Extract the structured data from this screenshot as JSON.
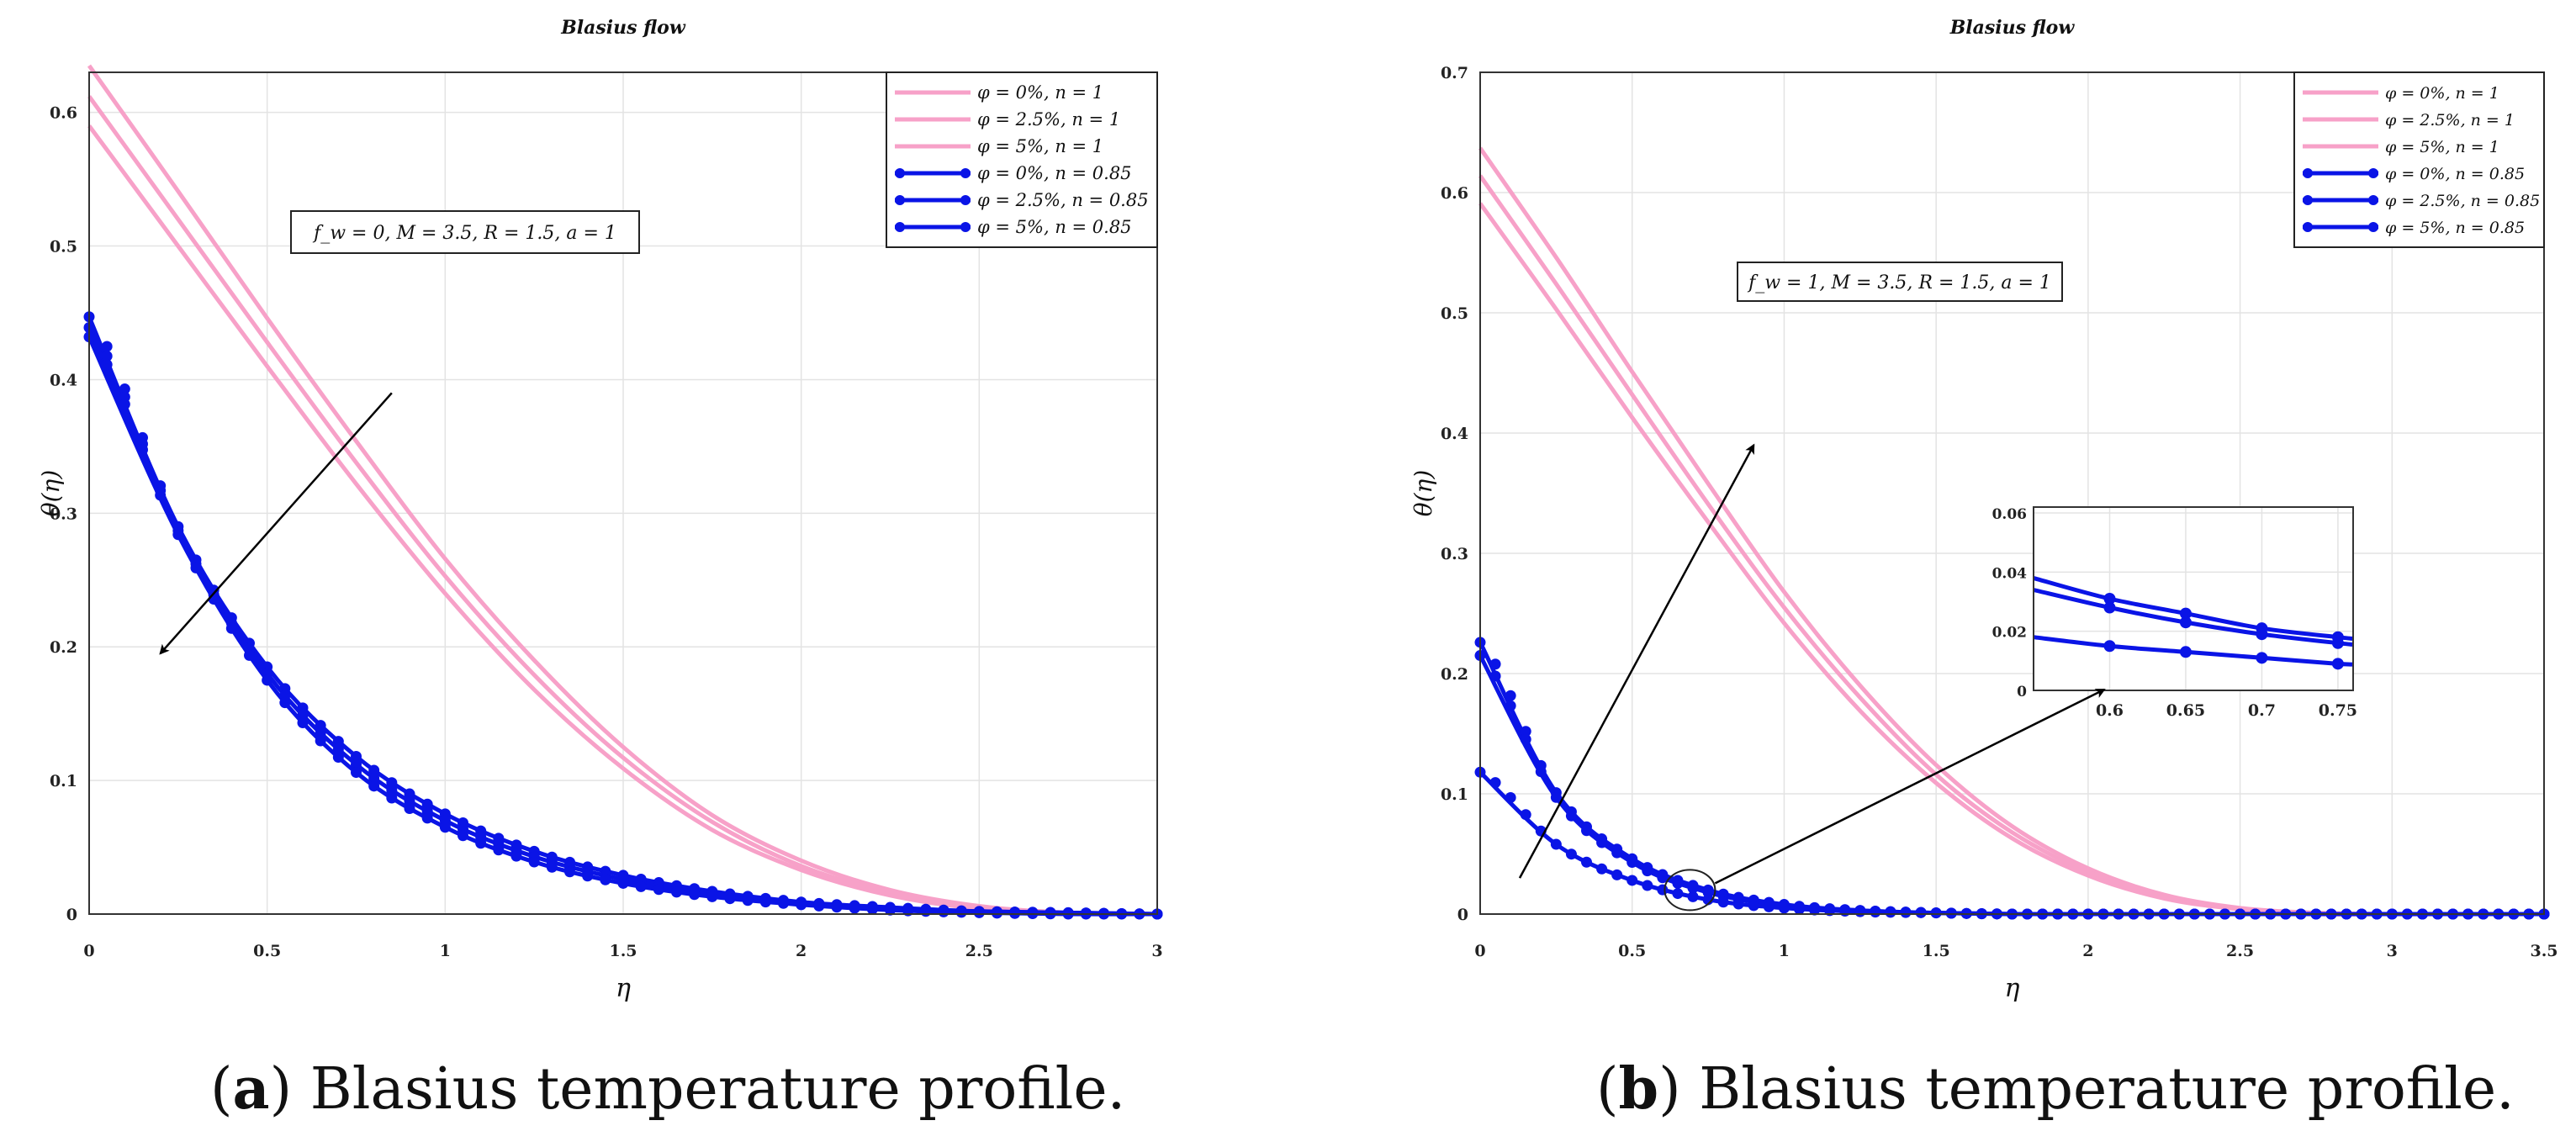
{
  "captions": [
    {
      "letter": "a",
      "text": " Blasius temperature profile."
    },
    {
      "letter": "b",
      "text": " Blasius temperature profile."
    }
  ],
  "colors": {
    "pink": "#F7A1C8",
    "blue": "#0A14E6",
    "grid": "#E3E3E3",
    "axis": "#333333"
  },
  "chart_data": [
    {
      "type": "line",
      "title": "Blasius flow",
      "xlabel": "η",
      "ylabel": "θ(η)",
      "xlim": [
        0,
        3
      ],
      "ylim": [
        0,
        0.63
      ],
      "xticks": [
        0,
        0.5,
        1,
        1.5,
        2,
        2.5,
        3
      ],
      "xtick_labels": [
        "0",
        "0.5",
        "1",
        "1.5",
        "2",
        "2.5",
        "3"
      ],
      "yticks": [
        0,
        0.1,
        0.2,
        0.3,
        0.4,
        0.5,
        0.6
      ],
      "ytick_labels": [
        "0",
        "0.1",
        "0.2",
        "0.3",
        "0.4",
        "0.5",
        "0.6"
      ],
      "grid": true,
      "legend_position": "top-right",
      "annotation": "f_w = 0, M = 3.5, R = 1.5, a = 1",
      "x": [
        0,
        0.25,
        0.5,
        0.75,
        1,
        1.25,
        1.5,
        1.75,
        2,
        2.25,
        2.5,
        2.75,
        3
      ],
      "series": [
        {
          "name": "φ = 0%, n = 1",
          "color": "pink",
          "markers": false,
          "values": [
            0.635,
            0.541,
            0.446,
            0.354,
            0.266,
            0.19,
            0.125,
            0.074,
            0.04,
            0.018,
            0.006,
            0.001,
            0.0
          ]
        },
        {
          "name": "φ = 2.5%, n = 1",
          "color": "pink",
          "markers": false,
          "values": [
            0.612,
            0.52,
            0.428,
            0.338,
            0.253,
            0.179,
            0.117,
            0.069,
            0.036,
            0.016,
            0.005,
            0.001,
            0.0
          ]
        },
        {
          "name": "φ = 5%, n = 1",
          "color": "pink",
          "markers": false,
          "values": [
            0.59,
            0.5,
            0.41,
            0.322,
            0.24,
            0.168,
            0.109,
            0.063,
            0.033,
            0.014,
            0.004,
            0.001,
            0.0
          ]
        },
        {
          "name": "φ = 0%, n = 0.85",
          "color": "blue",
          "markers": true,
          "values": [
            0.447,
            0.29,
            0.185,
            0.118,
            0.075,
            0.047,
            0.029,
            0.017,
            0.009,
            0.005,
            0.002,
            0.001,
            0.0
          ]
        },
        {
          "name": "φ = 2.5%, n = 0.85",
          "color": "blue",
          "markers": true,
          "values": [
            0.439,
            0.287,
            0.18,
            0.112,
            0.07,
            0.043,
            0.026,
            0.015,
            0.008,
            0.004,
            0.002,
            0.001,
            0.0
          ]
        },
        {
          "name": "φ = 5%, n = 0.85",
          "color": "blue",
          "markers": true,
          "values": [
            0.432,
            0.284,
            0.175,
            0.106,
            0.065,
            0.039,
            0.023,
            0.013,
            0.007,
            0.003,
            0.001,
            0.0,
            0.0
          ]
        }
      ],
      "arrows": [
        {
          "from": [
            0.85,
            0.39
          ],
          "to": [
            0.2,
            0.195
          ]
        }
      ]
    },
    {
      "type": "line",
      "title": "Blasius flow",
      "xlabel": "η",
      "ylabel": "θ(η)",
      "xlim": [
        0,
        3.5
      ],
      "ylim": [
        0,
        0.7
      ],
      "xticks": [
        0,
        0.5,
        1,
        1.5,
        2,
        2.5,
        3,
        3.5
      ],
      "xtick_labels": [
        "0",
        "0.5",
        "1",
        "1.5",
        "2",
        "2.5",
        "3",
        "3.5"
      ],
      "yticks": [
        0,
        0.1,
        0.2,
        0.3,
        0.4,
        0.5,
        0.6,
        0.7
      ],
      "ytick_labels": [
        "0",
        "0.1",
        "0.2",
        "0.3",
        "0.4",
        "0.5",
        "0.6",
        "0.7"
      ],
      "grid": true,
      "legend_position": "top-right",
      "annotation": "f_w = 1, M = 3.5, R = 1.5, a = 1",
      "x": [
        0,
        0.25,
        0.5,
        0.75,
        1,
        1.25,
        1.5,
        1.75,
        2,
        2.25,
        2.5,
        2.75,
        3,
        3.25,
        3.5
      ],
      "series": [
        {
          "name": "φ = 0%, n = 1",
          "color": "pink",
          "markers": false,
          "values": [
            0.637,
            0.546,
            0.451,
            0.358,
            0.268,
            0.19,
            0.124,
            0.073,
            0.038,
            0.016,
            0.005,
            0.001,
            0.0,
            0.0,
            0.0
          ]
        },
        {
          "name": "φ = 2.5%, n = 1",
          "color": "pink",
          "markers": false,
          "values": [
            0.614,
            0.524,
            0.432,
            0.341,
            0.255,
            0.18,
            0.116,
            0.068,
            0.035,
            0.015,
            0.004,
            0.001,
            0.0,
            0.0,
            0.0
          ]
        },
        {
          "name": "φ = 5%, n = 1",
          "color": "pink",
          "markers": false,
          "values": [
            0.591,
            0.503,
            0.413,
            0.326,
            0.242,
            0.169,
            0.109,
            0.063,
            0.032,
            0.013,
            0.004,
            0.0,
            0.0,
            0.0,
            0.0
          ]
        },
        {
          "name": "φ = 0%, n = 0.85",
          "color": "blue",
          "markers": true,
          "values": [
            0.226,
            0.101,
            0.046,
            0.02,
            0.008,
            0.003,
            0.001,
            0.0,
            0.0,
            0.0,
            0.0,
            0.0,
            0.0,
            0.0,
            0.0
          ]
        },
        {
          "name": "φ = 2.5%, n = 0.85",
          "color": "blue",
          "markers": true,
          "values": [
            0.215,
            0.097,
            0.043,
            0.018,
            0.007,
            0.003,
            0.001,
            0.0,
            0.0,
            0.0,
            0.0,
            0.0,
            0.0,
            0.0,
            0.0
          ]
        },
        {
          "name": "φ = 5%, n = 0.85",
          "color": "blue",
          "markers": true,
          "values": [
            0.118,
            0.058,
            0.028,
            0.012,
            0.005,
            0.002,
            0.001,
            0.0,
            0.0,
            0.0,
            0.0,
            0.0,
            0.0,
            0.0,
            0.0
          ]
        }
      ],
      "arrows": [
        {
          "from": [
            0.13,
            0.03
          ],
          "to": [
            0.9,
            0.39
          ]
        }
      ],
      "zoom_marker": {
        "x": 0.69,
        "y": 0.02
      },
      "inset": {
        "xlim": [
          0.55,
          0.76
        ],
        "ylim": [
          0,
          0.062
        ],
        "xticks": [
          0.6,
          0.65,
          0.7,
          0.75
        ],
        "xtick_labels": [
          "0.6",
          "0.65",
          "0.7",
          "0.75"
        ],
        "yticks": [
          0,
          0.02,
          0.04,
          0.06
        ],
        "ytick_labels": [
          "0",
          "0.02",
          "0.04",
          "0.06"
        ],
        "x": [
          0.55,
          0.6,
          0.65,
          0.7,
          0.75,
          0.76
        ],
        "series": [
          {
            "values": [
              0.038,
              0.031,
              0.026,
              0.021,
              0.018,
              0.0175
            ]
          },
          {
            "values": [
              0.034,
              0.028,
              0.023,
              0.019,
              0.016,
              0.0155
            ]
          },
          {
            "values": [
              0.018,
              0.015,
              0.013,
              0.011,
              0.009,
              0.0088
            ]
          }
        ]
      }
    }
  ]
}
